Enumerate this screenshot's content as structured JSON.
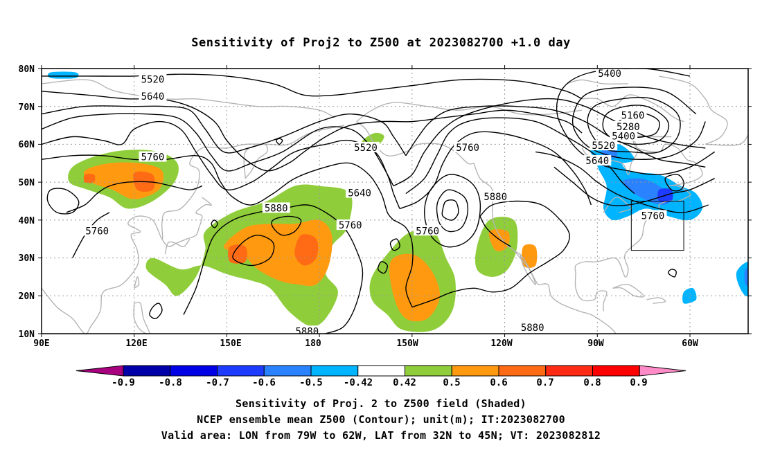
{
  "title": "Sensitivity of Proj2 to Z500 at 2023082700 +1.0 day",
  "lat_labels": [
    "80N",
    "70N",
    "60N",
    "50N",
    "40N",
    "30N",
    "20N",
    "10N"
  ],
  "lon_labels": [
    "90E",
    "120E",
    "150E",
    "180",
    "150W",
    "120W",
    "90W",
    "60W"
  ],
  "contour_labels": [
    {
      "text": "5520",
      "lon": 126,
      "lat": 77
    },
    {
      "text": "5640",
      "lon": 126,
      "lat": 72.5
    },
    {
      "text": "5760",
      "lon": 126,
      "lat": 56.5
    },
    {
      "text": "5760",
      "lon": 108,
      "lat": 37
    },
    {
      "text": "5880",
      "lon": 166,
      "lat": 43
    },
    {
      "text": "5520",
      "lon": -165,
      "lat": 59
    },
    {
      "text": "5640",
      "lon": -167,
      "lat": 47
    },
    {
      "text": "5760",
      "lon": -170,
      "lat": 38.5
    },
    {
      "text": "5760",
      "lon": -132,
      "lat": 59
    },
    {
      "text": "5760",
      "lon": -145,
      "lat": 37
    },
    {
      "text": "5880",
      "lon": -123,
      "lat": 46
    },
    {
      "text": "5880",
      "lon": -111,
      "lat": 11.5
    },
    {
      "text": "5880",
      "lon": 176,
      "lat": 10.5
    },
    {
      "text": "5400",
      "lon": -86,
      "lat": 78.5
    },
    {
      "text": "5160",
      "lon": -78.5,
      "lat": 67.5
    },
    {
      "text": "5280",
      "lon": -80,
      "lat": 64.5
    },
    {
      "text": "5400",
      "lon": -81.5,
      "lat": 62
    },
    {
      "text": "5520",
      "lon": -88,
      "lat": 59.5
    },
    {
      "text": "5640",
      "lon": -90,
      "lat": 55.5
    },
    {
      "text": "5760",
      "lon": -72,
      "lat": 41
    }
  ],
  "colorbar": {
    "labels": [
      "-0.9",
      "-0.8",
      "-0.7",
      "-0.6",
      "-0.5",
      "-0.42",
      "0.42",
      "0.5",
      "0.6",
      "0.7",
      "0.8",
      "0.9"
    ],
    "colors": [
      "#a8007e",
      "#0000a8",
      "#0000e6",
      "#1e3cff",
      "#2a82ff",
      "#00b4ff",
      "#ffffff",
      "#8fce3a",
      "#ff9a10",
      "#ff6a14",
      "#ff2a14",
      "#ff0000",
      "#ff8cc8"
    ]
  },
  "valid_box": {
    "lon_w": -79,
    "lon_e": -62,
    "lat_s": 32,
    "lat_n": 45
  },
  "caption": [
    "Sensitivity of Proj. 2 to Z500 field (Shaded)",
    "NCEP ensemble mean Z500 (Contour); unit(m); IT:2023082700",
    "Valid area: LON from 79W to 62W, LAT from 32N to 45N; VT: 2023082812"
  ]
}
